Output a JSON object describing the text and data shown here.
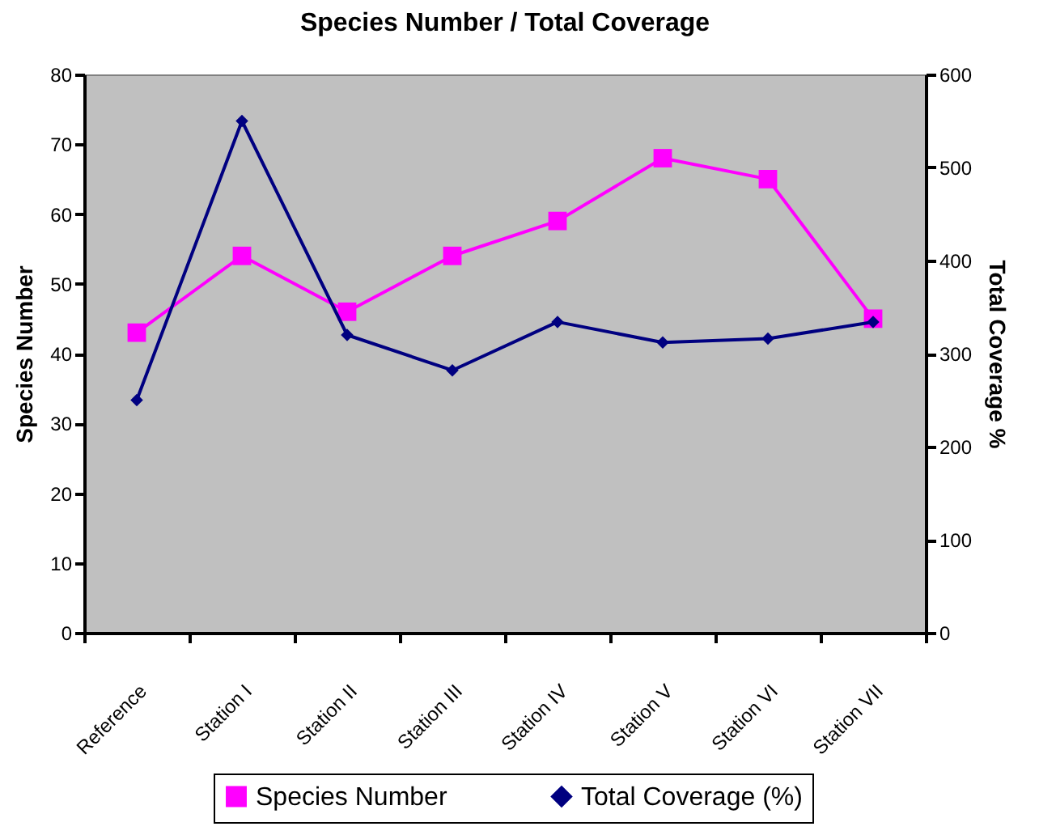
{
  "chart_data": {
    "type": "line",
    "title": "Species Number / Total Coverage",
    "ylabel": "Species Number",
    "y2label": "Total Coverage %",
    "categories": [
      "Reference",
      "Station I",
      "Station II",
      "Station III",
      "Station IV",
      "Station V",
      "Station VI",
      "Station VII"
    ],
    "series": [
      {
        "name": "Species Number",
        "color": "#ff00ff",
        "marker": "square",
        "values": [
          43,
          54,
          46,
          54,
          59,
          68,
          65,
          45
        ]
      },
      {
        "name": "Total Coverage (%)",
        "color": "#000080",
        "marker": "diamond",
        "axis": "y2",
        "values": [
          250,
          550,
          320,
          282,
          334,
          312,
          316,
          334
        ]
      }
    ],
    "ylim": [
      0,
      80
    ],
    "yticks": [
      0,
      10,
      20,
      30,
      40,
      50,
      60,
      70,
      80
    ],
    "y2lim": [
      0,
      600
    ],
    "y2ticks": [
      0,
      100,
      200,
      300,
      400,
      500,
      600
    ],
    "grid": false,
    "legend": "bottom"
  }
}
